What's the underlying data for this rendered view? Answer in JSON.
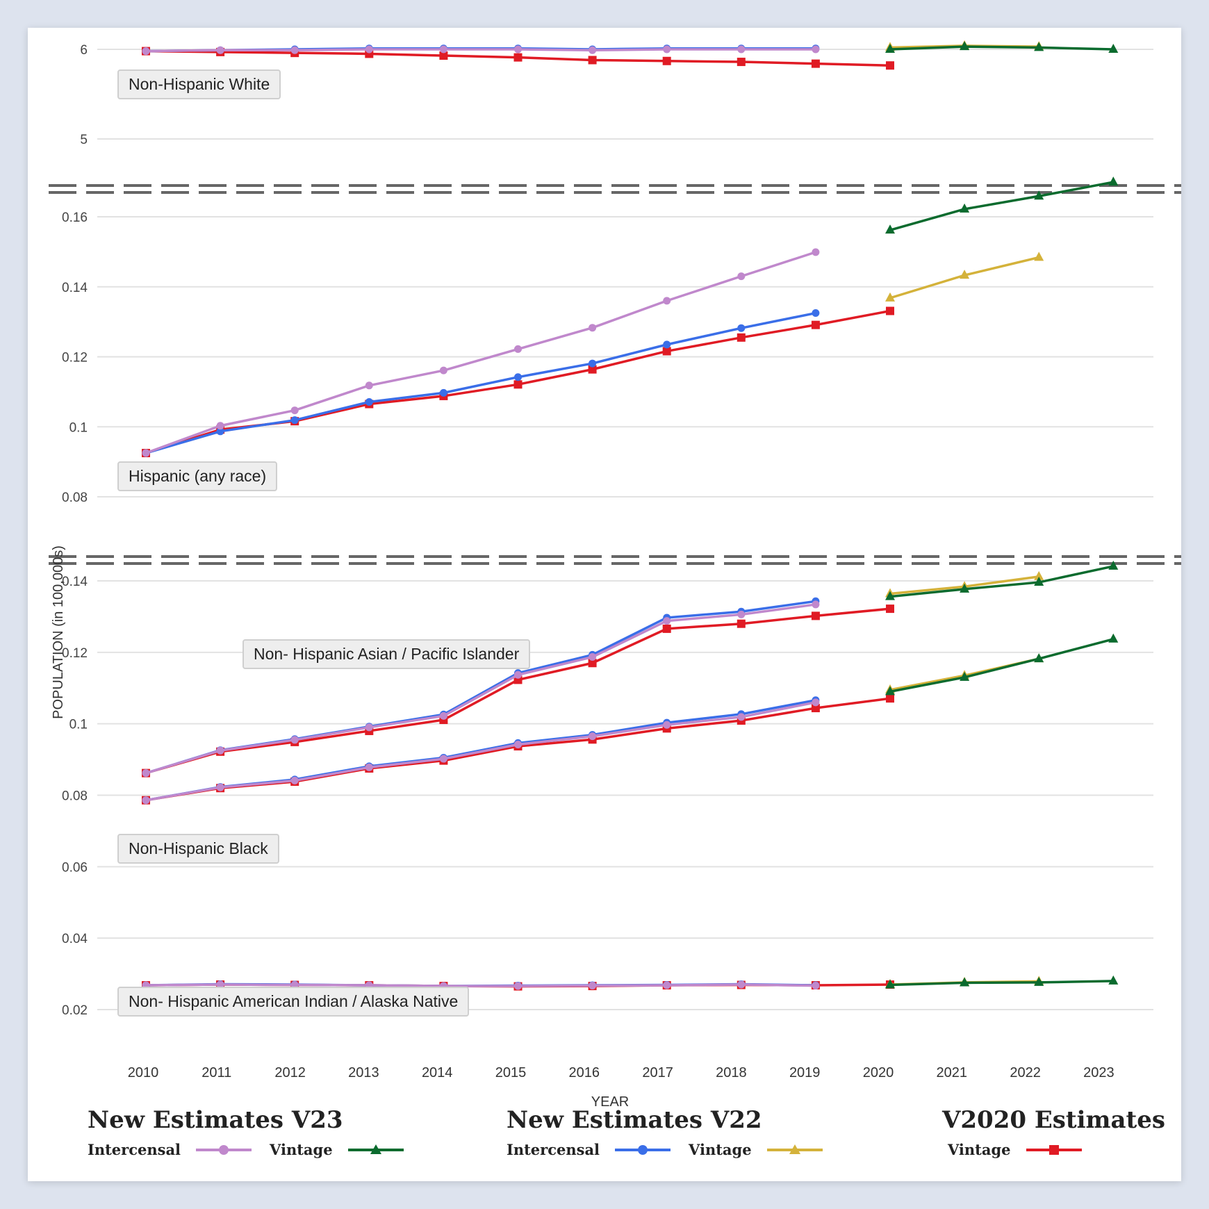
{
  "chart_data": {
    "type": "line",
    "title": "",
    "xlabel": "YEAR",
    "ylabel": "POPULATION (in 100,000s)",
    "x": [
      2010,
      2011,
      2012,
      2013,
      2014,
      2015,
      2016,
      2017,
      2018,
      2019,
      2020,
      2021,
      2022,
      2023
    ],
    "x_tick_labels": [
      "2010",
      "2011",
      "2012",
      "2013",
      "2014",
      "2015",
      "2016",
      "2017",
      "2018",
      "2019",
      "2020",
      "2021",
      "2022",
      "2023"
    ],
    "grid": true,
    "axis_breaks": 2,
    "panels": [
      {
        "label": "Non-Hispanic White",
        "ylim": [
          4.85,
          6.08
        ],
        "y_ticks": [
          5,
          6
        ],
        "y_tick_labels": [
          "5",
          "6"
        ],
        "series": [
          {
            "key": "v23_intercensal",
            "values": [
              5.98,
              5.99,
              5.99,
              6.0,
              6.0,
              6.0,
              5.99,
              6.0,
              6.0,
              6.0,
              null,
              null,
              null,
              null
            ]
          },
          {
            "key": "v22_intercensal",
            "values": [
              5.98,
              5.99,
              6.0,
              6.01,
              6.01,
              6.01,
              6.0,
              6.01,
              6.01,
              6.01,
              null,
              null,
              null,
              null
            ]
          },
          {
            "key": "v2020_vintage",
            "values": [
              5.98,
              5.97,
              5.96,
              5.95,
              5.93,
              5.91,
              5.88,
              5.87,
              5.86,
              5.84,
              5.82,
              null,
              null,
              null
            ]
          },
          {
            "key": "v22_vintage",
            "values": [
              null,
              null,
              null,
              null,
              null,
              null,
              null,
              null,
              null,
              null,
              6.02,
              6.04,
              6.03,
              null
            ]
          },
          {
            "key": "v23_vintage",
            "values": [
              null,
              null,
              null,
              null,
              null,
              null,
              null,
              null,
              null,
              null,
              6.0,
              6.03,
              6.02,
              6.0
            ]
          }
        ]
      },
      {
        "label": "Hispanic (any race)",
        "ylim": [
          0.073,
          0.171
        ],
        "y_ticks": [
          0.08,
          0.1,
          0.12,
          0.14,
          0.16
        ],
        "y_tick_labels": [
          "0.08",
          "0.1",
          "0.12",
          "0.14",
          "0.16"
        ],
        "series": [
          {
            "key": "v23_intercensal",
            "values": [
              0.0925,
              0.1003,
              0.1047,
              0.1118,
              0.1161,
              0.1222,
              0.1283,
              0.136,
              0.143,
              0.1499,
              null,
              null,
              null,
              null
            ]
          },
          {
            "key": "v22_intercensal",
            "values": [
              0.0925,
              0.0987,
              0.1019,
              0.1071,
              0.1097,
              0.1142,
              0.1181,
              0.1235,
              0.1282,
              0.1325,
              null,
              null,
              null,
              null
            ]
          },
          {
            "key": "v2020_vintage",
            "values": [
              0.0925,
              0.0992,
              0.1016,
              0.1065,
              0.1088,
              0.1121,
              0.1164,
              0.1216,
              0.1255,
              0.1291,
              0.1331,
              null,
              null,
              null
            ]
          },
          {
            "key": "v22_vintage",
            "values": [
              null,
              null,
              null,
              null,
              null,
              null,
              null,
              null,
              null,
              null,
              0.1368,
              0.1433,
              0.1484,
              null
            ]
          },
          {
            "key": "v23_vintage",
            "values": [
              null,
              null,
              null,
              null,
              null,
              null,
              null,
              null,
              null,
              null,
              0.1562,
              0.1622,
              0.1659,
              0.1699
            ]
          }
        ]
      },
      {
        "label": "Non- Hispanic Asian / Pacific Islander",
        "ylim": [
          0.0165,
          0.1475
        ],
        "y_ticks": [
          0.02,
          0.04,
          0.06,
          0.08,
          0.1,
          0.12,
          0.14
        ],
        "y_tick_labels": [
          "0.02",
          "0.04",
          "0.06",
          "0.08",
          "0.1",
          "0.12",
          "0.14"
        ],
        "shared_axis": true,
        "series": [
          {
            "key": "v23_intercensal",
            "values": [
              0.0862,
              0.0925,
              0.0955,
              0.099,
              0.1022,
              0.1137,
              0.1187,
              0.1288,
              0.1306,
              0.1334,
              null,
              null,
              null,
              null
            ]
          },
          {
            "key": "v22_intercensal",
            "values": [
              0.0862,
              0.0926,
              0.0957,
              0.0992,
              0.1026,
              0.1142,
              0.1193,
              0.1297,
              0.1314,
              0.1343,
              null,
              null,
              null,
              null
            ]
          },
          {
            "key": "v2020_vintage",
            "values": [
              0.0862,
              0.0922,
              0.0949,
              0.098,
              0.1011,
              0.1123,
              0.117,
              0.1266,
              0.128,
              0.1302,
              0.1322,
              null,
              null,
              null
            ]
          },
          {
            "key": "v22_vintage",
            "values": [
              null,
              null,
              null,
              null,
              null,
              null,
              null,
              null,
              null,
              null,
              0.1364,
              0.1384,
              0.1412,
              null
            ]
          },
          {
            "key": "v23_vintage",
            "values": [
              null,
              null,
              null,
              null,
              null,
              null,
              null,
              null,
              null,
              null,
              0.1356,
              0.1377,
              0.1396,
              0.1441
            ]
          }
        ]
      },
      {
        "label": "Non-Hispanic Black",
        "ylim": [
          0.0165,
          0.1475
        ],
        "y_ticks": [],
        "y_tick_labels": [],
        "shared_axis": true,
        "series": [
          {
            "key": "v23_intercensal",
            "values": [
              0.0786,
              0.0822,
              0.0841,
              0.0878,
              0.0902,
              0.0942,
              0.0965,
              0.0997,
              0.1019,
              0.106,
              null,
              null,
              null,
              null
            ]
          },
          {
            "key": "v22_intercensal",
            "values": [
              0.0786,
              0.0823,
              0.0844,
              0.0881,
              0.0905,
              0.0946,
              0.0969,
              0.1003,
              0.1027,
              0.1066,
              null,
              null,
              null,
              null
            ]
          },
          {
            "key": "v2020_vintage",
            "values": [
              0.0786,
              0.082,
              0.0838,
              0.0875,
              0.0897,
              0.0937,
              0.0956,
              0.0987,
              0.1009,
              0.1044,
              0.1071,
              null,
              null,
              null
            ]
          },
          {
            "key": "v22_vintage",
            "values": [
              null,
              null,
              null,
              null,
              null,
              null,
              null,
              null,
              null,
              null,
              0.1095,
              0.1135,
              0.1182,
              null
            ]
          },
          {
            "key": "v23_vintage",
            "values": [
              null,
              null,
              null,
              null,
              null,
              null,
              null,
              null,
              null,
              null,
              0.109,
              0.113,
              0.1182,
              0.1237
            ]
          }
        ]
      },
      {
        "label": "Non- Hispanic American Indian / Alaska Native",
        "ylim": [
          0.0165,
          0.1475
        ],
        "y_ticks": [],
        "y_tick_labels": [],
        "shared_axis": true,
        "series": [
          {
            "key": "v23_intercensal",
            "values": [
              0.0268,
              0.027,
              0.0269,
              0.0268,
              0.0266,
              0.0266,
              0.0267,
              0.0268,
              0.027,
              0.0267,
              null,
              null,
              null,
              null
            ]
          },
          {
            "key": "v22_intercensal",
            "values": [
              0.0268,
              0.0271,
              0.027,
              0.0268,
              0.0266,
              0.0267,
              0.0268,
              0.0269,
              0.0271,
              0.0268,
              null,
              null,
              null,
              null
            ]
          },
          {
            "key": "v2020_vintage",
            "values": [
              0.0268,
              0.027,
              0.0269,
              0.0268,
              0.0266,
              0.0265,
              0.0266,
              0.0268,
              0.0269,
              0.0268,
              0.027,
              null,
              null,
              null
            ]
          },
          {
            "key": "v22_vintage",
            "values": [
              null,
              null,
              null,
              null,
              null,
              null,
              null,
              null,
              null,
              null,
              0.027,
              0.0276,
              0.0279,
              null
            ]
          },
          {
            "key": "v23_vintage",
            "values": [
              null,
              null,
              null,
              null,
              null,
              null,
              null,
              null,
              null,
              null,
              0.0269,
              0.0275,
              0.0276,
              0.028
            ]
          }
        ]
      }
    ],
    "series_styles": {
      "v23_intercensal": {
        "name": "New Estimates V23 Intercensal",
        "color": "#c088cc",
        "marker": "circle"
      },
      "v23_vintage": {
        "name": "New Estimates V23 Vintage",
        "color": "#0b6b2e",
        "marker": "triangle"
      },
      "v22_intercensal": {
        "name": "New Estimates V22 Intercensal",
        "color": "#3a6ee8",
        "marker": "circle"
      },
      "v22_vintage": {
        "name": "New Estimates V22 Vintage",
        "color": "#d4b23a",
        "marker": "triangle"
      },
      "v2020_vintage": {
        "name": "V2020 Estimates Vintage",
        "color": "#e01b24",
        "marker": "square"
      }
    },
    "legend": {
      "placement": "bottom",
      "groups": [
        {
          "title": "New Estimates V23",
          "items": [
            {
              "label": "Intercensal",
              "key": "v23_intercensal"
            },
            {
              "label": "Vintage",
              "key": "v23_vintage"
            }
          ]
        },
        {
          "title": "New Estimates V22",
          "items": [
            {
              "label": "Intercensal",
              "key": "v22_intercensal"
            },
            {
              "label": "Vintage",
              "key": "v22_vintage"
            }
          ]
        },
        {
          "title": "V2020 Estimates",
          "items": [
            {
              "label": "Vintage",
              "key": "v2020_vintage"
            }
          ]
        }
      ]
    }
  }
}
